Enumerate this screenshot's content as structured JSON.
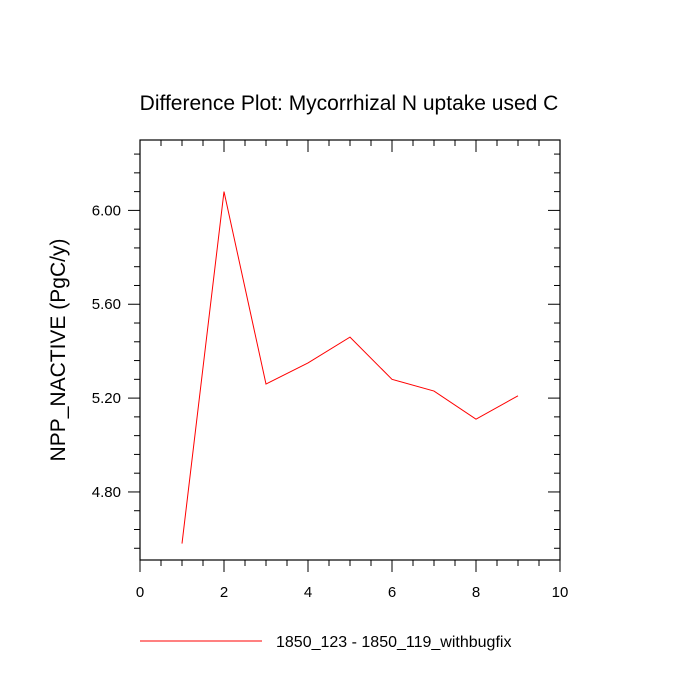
{
  "chart_data": {
    "type": "line",
    "title": "Difference Plot: Mycorrhizal N uptake used C",
    "xlabel": "",
    "ylabel": "NPP_NACTIVE  (PgC/y)",
    "xlim": [
      0,
      10
    ],
    "ylim": [
      4.51,
      6.3
    ],
    "x_ticks": [
      0,
      2,
      4,
      6,
      8,
      10
    ],
    "x_tick_labels": [
      "0",
      "2",
      "4",
      "6",
      "8",
      "10"
    ],
    "y_ticks": [
      4.8,
      5.2,
      5.6,
      6.0
    ],
    "y_tick_labels": [
      "4.80",
      "5.20",
      "5.60",
      "6.00"
    ],
    "grid": false,
    "legend_position": "bottom",
    "series": [
      {
        "name": "1850_123 - 1850_119_withbugfix",
        "color": "#ff0000",
        "x": [
          1,
          2,
          3,
          4,
          5,
          6,
          7,
          8,
          9
        ],
        "y": [
          4.58,
          6.08,
          5.26,
          5.35,
          5.46,
          5.28,
          5.23,
          5.11,
          5.21
        ]
      }
    ]
  }
}
